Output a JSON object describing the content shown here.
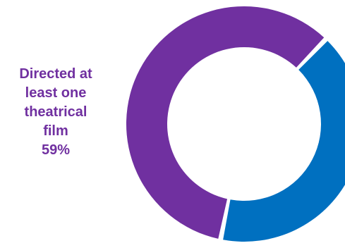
{
  "chart_data": {
    "type": "pie",
    "variant": "donut",
    "slices": [
      {
        "label": "Directed at least one theatrical film",
        "value": 59,
        "display_value": "59%",
        "color": "#7030a0"
      },
      {
        "label": "",
        "value": 41,
        "display_value": "",
        "color": "#0070c0"
      }
    ],
    "title": "",
    "legend": "none"
  },
  "labels": {
    "slice1_name_lines": [
      "Directed at",
      "least one",
      "theatrical",
      "film"
    ],
    "slice1_pct": "59%"
  }
}
